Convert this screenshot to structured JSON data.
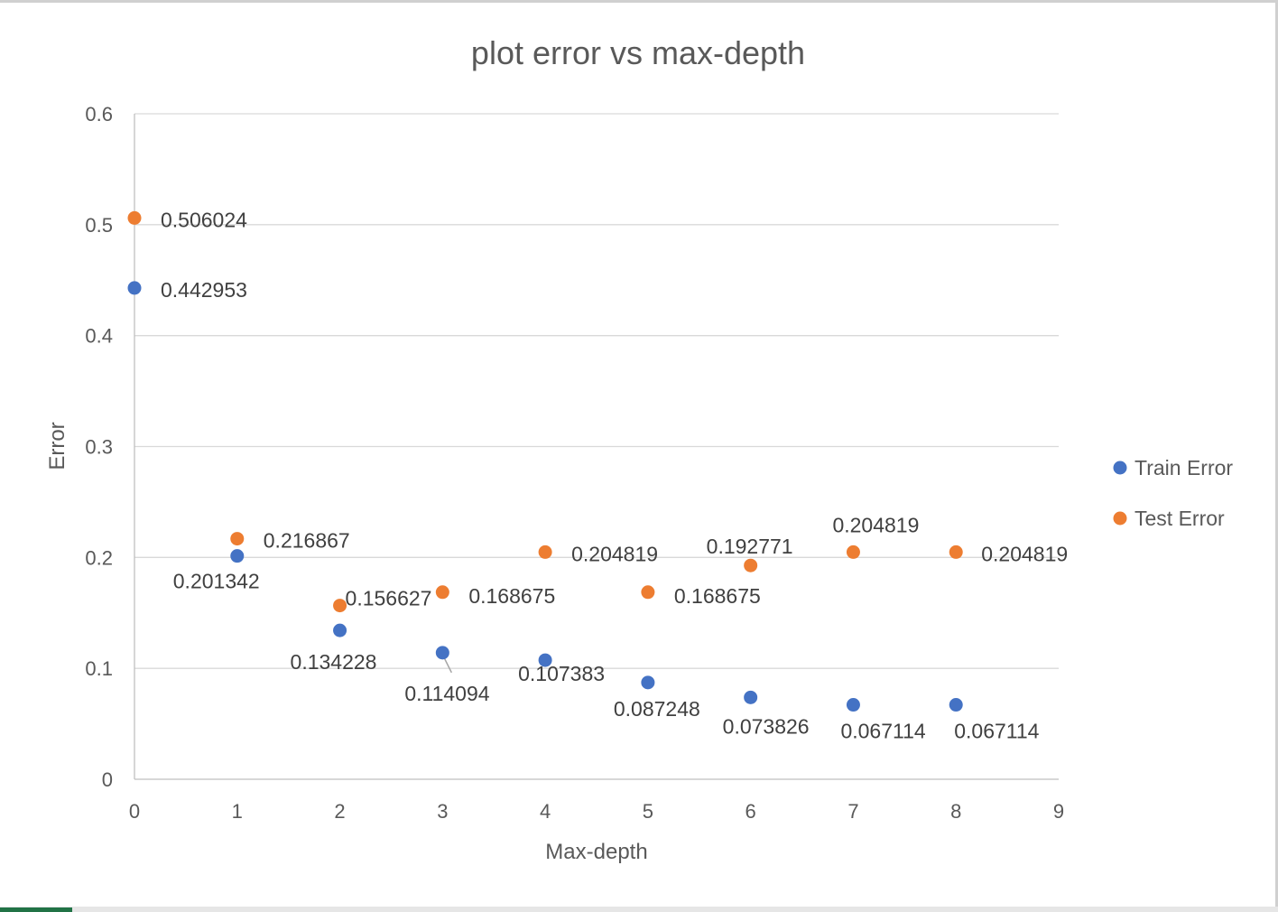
{
  "chart_data": {
    "type": "scatter",
    "title": "plot error vs max-depth",
    "xlabel": "Max-depth",
    "ylabel": "Error",
    "xlim": [
      0,
      9
    ],
    "ylim": [
      0,
      0.6
    ],
    "xticks": [
      "0",
      "1",
      "2",
      "3",
      "4",
      "5",
      "6",
      "7",
      "8",
      "9"
    ],
    "yticks": [
      "0",
      "0.1",
      "0.2",
      "0.3",
      "0.4",
      "0.5",
      "0.6"
    ],
    "grid": true,
    "legend_position": "right",
    "series": [
      {
        "name": "Train Error",
        "color": "#4472c4",
        "x": [
          0,
          1,
          2,
          3,
          4,
          5,
          6,
          7,
          8
        ],
        "y": [
          0.442953,
          0.201342,
          0.134228,
          0.114094,
          0.107383,
          0.087248,
          0.073826,
          0.067114,
          0.067114
        ],
        "labels": [
          "0.442953",
          "0.201342",
          "0.134228",
          "0.114094",
          "0.107383",
          "0.087248",
          "0.073826",
          "0.067114",
          "0.067114"
        ]
      },
      {
        "name": "Test Error",
        "color": "#ed7d31",
        "x": [
          0,
          1,
          2,
          3,
          4,
          5,
          6,
          7,
          8
        ],
        "y": [
          0.506024,
          0.216867,
          0.156627,
          0.168675,
          0.204819,
          0.168675,
          0.192771,
          0.204819,
          0.204819
        ],
        "labels": [
          "0.506024",
          "0.216867",
          "0.156627",
          "0.168675",
          "0.204819",
          "0.168675",
          "0.192771",
          "0.204819",
          "0.204819"
        ]
      }
    ]
  }
}
